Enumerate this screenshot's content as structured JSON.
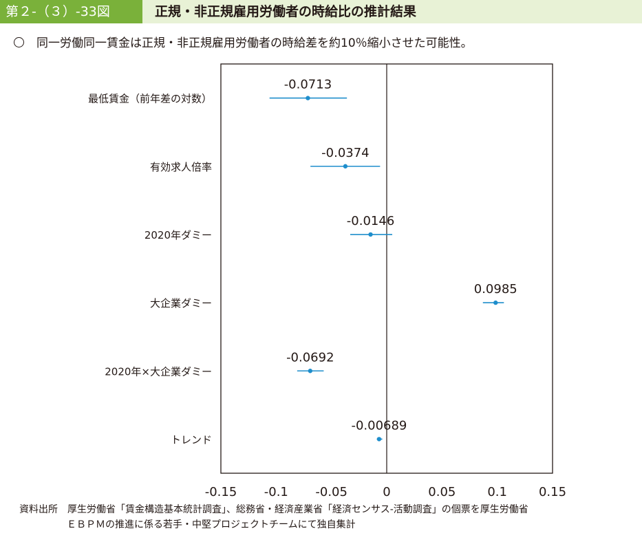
{
  "header": {
    "figure_label": "第２-（３）-33図",
    "title": "正規・非正規雇用労働者の時給比の推計結果"
  },
  "subtitle": "同一労働同一賃金は正規・非正規雇用労働者の時給差を約10％縮小させた可能性。",
  "chart_data": {
    "type": "scatter",
    "title": "",
    "xlabel": "",
    "ylabel": "",
    "xlim": [
      -0.15,
      0.15
    ],
    "x_ticks": [
      "-0.15",
      "-0.1",
      "-0.05",
      "0",
      "0.05",
      "0.1",
      "0.15"
    ],
    "x_tick_values": [
      -0.15,
      -0.1,
      -0.05,
      0,
      0.05,
      0.1,
      0.15
    ],
    "reference_line_x": 0,
    "grid": false,
    "point_color": "#1e8ecc",
    "categories": [
      "最低賃金（前年差の対数）",
      "有効求人倍率",
      "2020年ダミー",
      "大企業ダミー",
      "2020年×大企業ダミー",
      "トレンド"
    ],
    "estimates": [
      -0.0713,
      -0.0374,
      -0.0146,
      0.0985,
      -0.0692,
      -0.00689
    ],
    "labels": [
      "-0.0713",
      "-0.0374",
      "-0.0146",
      "0.0985",
      "-0.0692",
      "-0.00689"
    ],
    "ci_low": [
      -0.106,
      -0.069,
      -0.033,
      0.087,
      -0.081,
      -0.009
    ],
    "ci_high": [
      -0.036,
      -0.006,
      0.005,
      0.106,
      -0.057,
      -0.004
    ]
  },
  "source": {
    "line1": "資料出所　厚生労働省「賃金構造基本統計調査」、総務省・経済産業省「経済センサス‐活動調査」の個票を厚生労働省",
    "line2": "ＥＢＰＭの推進に係る若手・中堅プロジェクトチームにて独自集計"
  }
}
